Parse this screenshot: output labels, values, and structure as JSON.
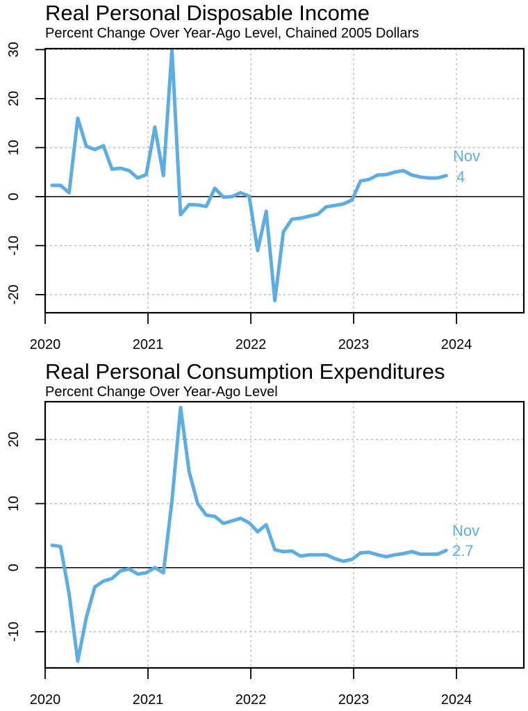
{
  "chart_data": [
    {
      "type": "line",
      "title": "Real Personal Disposable Income",
      "subtitle": "Percent Change Over Year-Ago Level, Chained 2005 Dollars",
      "xlabel": "",
      "ylabel": "",
      "x_start": "2020-01",
      "x_frequency": "monthly",
      "xlim": [
        2020.0,
        2024.655
      ],
      "ylim": [
        -23.7,
        30.2
      ],
      "x_ticks": [
        2020,
        2021,
        2022,
        2023,
        2024
      ],
      "x_tick_labels": [
        "2020",
        "2021",
        "2022",
        "2023",
        "2024"
      ],
      "y_ticks": [
        -20,
        -10,
        0,
        10,
        20,
        30
      ],
      "y_tick_labels": [
        "-20",
        "-10",
        "0",
        "10",
        "20",
        "30"
      ],
      "grid": true,
      "zero_line": true,
      "line_color": "#5DADE2",
      "series": [
        {
          "name": "Real Personal Disposable Income",
          "values": [
            2.3,
            2.3,
            0.8,
            16.0,
            10.3,
            9.6,
            10.4,
            5.6,
            5.8,
            5.3,
            3.8,
            4.5,
            14.2,
            4.3,
            30.0,
            -3.7,
            -1.6,
            -1.7,
            -2.0,
            1.7,
            -0.1,
            0.0,
            0.8,
            0.1,
            -11.0,
            -3.0,
            -21.2,
            -7.2,
            -4.6,
            -4.4,
            -4.0,
            -3.6,
            -2.1,
            -1.8,
            -1.5,
            -0.7,
            3.2,
            3.5,
            4.4,
            4.5,
            5.0,
            5.3,
            4.4,
            4.0,
            3.8,
            3.8,
            4.3
          ]
        }
      ],
      "annotation": {
        "month": "Nov",
        "value": "4"
      }
    },
    {
      "type": "line",
      "title": "Real Personal Consumption Expenditures",
      "subtitle": "Percent Change Over Year-Ago Level",
      "xlabel": "",
      "ylabel": "",
      "x_start": "2020-01",
      "x_frequency": "monthly",
      "xlim": [
        2020.0,
        2024.655
      ],
      "ylim": [
        -15.65,
        25.9
      ],
      "x_ticks": [
        2020,
        2021,
        2022,
        2023,
        2024
      ],
      "x_tick_labels": [
        "2020",
        "2021",
        "2022",
        "2023",
        "2024"
      ],
      "y_ticks": [
        -10,
        0,
        10,
        20
      ],
      "y_tick_labels": [
        "-10",
        "0",
        "10",
        "20"
      ],
      "grid": true,
      "zero_line": true,
      "line_color": "#5DADE2",
      "series": [
        {
          "name": "Real Personal Consumption Expenditures",
          "values": [
            3.5,
            3.3,
            -4.1,
            -14.6,
            -7.8,
            -3.0,
            -2.1,
            -1.7,
            -0.5,
            -0.2,
            -1.0,
            -0.8,
            0.0,
            -0.8,
            10.4,
            25.0,
            15.0,
            10.0,
            8.2,
            8.0,
            6.9,
            7.3,
            7.7,
            7.0,
            5.6,
            6.7,
            2.8,
            2.5,
            2.6,
            1.8,
            2.0,
            2.0,
            2.0,
            1.4,
            1.0,
            1.3,
            2.3,
            2.4,
            2.0,
            1.7,
            2.0,
            2.2,
            2.5,
            2.1,
            2.1,
            2.1,
            2.7
          ]
        }
      ],
      "annotation": {
        "month": "Nov",
        "value": "2.7"
      }
    }
  ]
}
